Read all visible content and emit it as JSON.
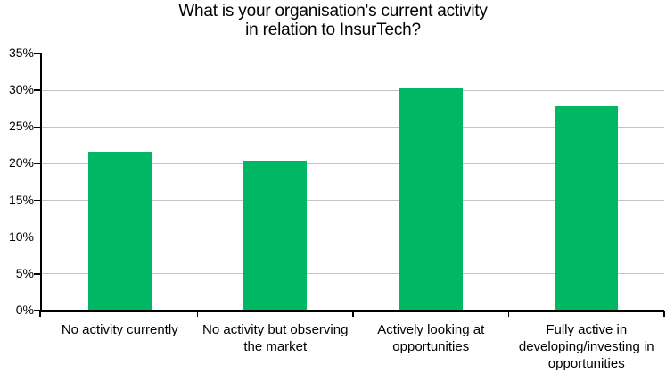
{
  "chart_data": {
    "type": "bar",
    "title": "What is your organisation's current activity in relation to InsurTech?",
    "title_lines": [
      "What is your organisation's current activity",
      "in relation to InsurTech?"
    ],
    "categories": [
      "No activity currently",
      "No activity but observing the market",
      "Actively looking at opportunities",
      "Fully active in developing/investing in opportunities"
    ],
    "values": [
      21.6,
      20.4,
      30.2,
      27.8
    ],
    "unit": "%",
    "xlabel": "",
    "ylabel": "",
    "ylim": [
      0,
      35
    ],
    "ytick_step": 5,
    "ytick_labels": [
      "0%",
      "5%",
      "10%",
      "15%",
      "20%",
      "25%",
      "30%",
      "35%"
    ],
    "grid": true,
    "legend_position": "none",
    "colors": {
      "bar": "#00B763",
      "gridline": "#c3c3c3",
      "axis": "#000000",
      "text": "#000000",
      "background": "#ffffff"
    }
  }
}
